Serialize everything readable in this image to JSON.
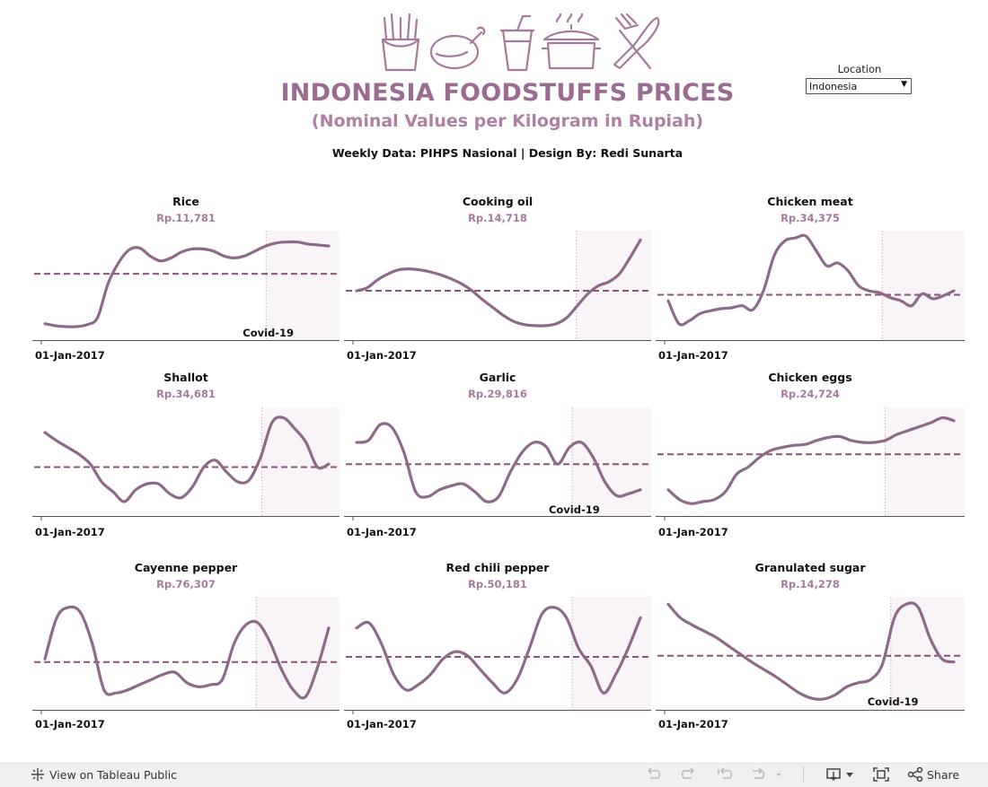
{
  "header": {
    "title": "INDONESIA FOODSTUFFS PRICES",
    "subtitle": "(Nominal Values per Kilogram in Rupiah)",
    "credit": "Weekly Data: PIHPS Nasional | Design By: Redi Sunarta",
    "icons": [
      "fries-icon",
      "roast-chicken-icon",
      "drink-cup-icon",
      "cooking-pot-icon",
      "fork-knife-icon"
    ]
  },
  "location_filter": {
    "label": "Location",
    "value": "Indonesia"
  },
  "colors": {
    "line": "#8e6a89",
    "average": "#8a5577",
    "covid_shade": "#f8f4f8",
    "title": "#9b6b91",
    "value": "#a67a9c"
  },
  "toolbar": {
    "view_label": "View on Tableau Public",
    "share_label": "Share",
    "icons": [
      "undo-icon",
      "redo-icon",
      "revert-icon",
      "refresh-icon",
      "download-icon",
      "fullscreen-icon",
      "share-icon"
    ]
  },
  "chart_data": [
    {
      "type": "line",
      "title": "Rice",
      "value": "Rp.11,781",
      "x_start_label": "01-Jan-2017",
      "covid_label": "Covid-19",
      "y": [
        12,
        10,
        9,
        9,
        11,
        18,
        52,
        73,
        86,
        88,
        80,
        75,
        78,
        84,
        87,
        87,
        85,
        80,
        78,
        80,
        85,
        90,
        93,
        94,
        94,
        92,
        91,
        90
      ],
      "average": 62,
      "covid_start": 0.735
    },
    {
      "type": "line",
      "title": "Cooking oil",
      "value": "Rp.14,718",
      "x_start_label": "01-Jan-2017",
      "covid_label": "",
      "y": [
        45,
        48,
        56,
        62,
        66,
        67,
        66,
        64,
        61,
        57,
        52,
        45,
        36,
        28,
        20,
        14,
        11,
        10,
        10,
        12,
        18,
        30,
        42,
        50,
        54,
        62,
        78,
        96
      ],
      "average": 45,
      "covid_start": 0.73
    },
    {
      "type": "line",
      "title": "Chicken meat",
      "value": "Rp.34,375",
      "x_start_label": "01-Jan-2017",
      "covid_label": "",
      "y": [
        35,
        12,
        15,
        22,
        25,
        27,
        28,
        30,
        26,
        45,
        80,
        95,
        98,
        100,
        85,
        70,
        73,
        65,
        50,
        45,
        43,
        38,
        35,
        30,
        42,
        37,
        40,
        45
      ],
      "average": 41,
      "covid_start": 0.705
    },
    {
      "type": "line",
      "title": "Shallot",
      "value": "Rp.34,681",
      "x_start_label": "01-Jan-2017",
      "covid_label": "",
      "y": [
        80,
        72,
        65,
        58,
        48,
        30,
        20,
        10,
        22,
        28,
        28,
        18,
        14,
        25,
        45,
        52,
        40,
        30,
        32,
        55,
        90,
        95,
        84,
        70,
        45,
        48
      ],
      "average": 45,
      "covid_start": 0.72
    },
    {
      "type": "line",
      "title": "Garlic",
      "value": "Rp.29,816",
      "x_start_label": "01-Jan-2017",
      "covid_label": "Covid-19",
      "y": [
        70,
        72,
        88,
        85,
        60,
        20,
        15,
        22,
        26,
        28,
        20,
        10,
        15,
        40,
        60,
        70,
        66,
        48,
        65,
        70,
        55,
        30,
        16,
        18,
        22
      ],
      "average": 48,
      "covid_start": 0.715
    },
    {
      "type": "line",
      "title": "Chicken eggs",
      "value": "Rp.24,724",
      "x_start_label": "01-Jan-2017",
      "covid_label": "",
      "y": [
        22,
        12,
        8,
        10,
        12,
        20,
        38,
        45,
        55,
        62,
        65,
        67,
        68,
        72,
        75,
        76,
        72,
        70,
        70,
        72,
        78,
        82,
        86,
        90,
        95,
        92
      ],
      "average": 58,
      "covid_start": 0.715
    },
    {
      "type": "line",
      "title": "Cayenne pepper",
      "value": "Rp.76,307",
      "x_start_label": "01-Jan-2017",
      "covid_label": "",
      "y": [
        45,
        85,
        95,
        90,
        60,
        15,
        12,
        15,
        20,
        25,
        30,
        32,
        22,
        18,
        20,
        25,
        60,
        78,
        80,
        62,
        35,
        15,
        8,
        35,
        75
      ],
      "average": 42,
      "covid_start": 0.7
    },
    {
      "type": "line",
      "title": "Red chili pepper",
      "value": "Rp.50,181",
      "x_start_label": "01-Jan-2017",
      "covid_label": "",
      "y": [
        75,
        80,
        60,
        30,
        15,
        20,
        30,
        45,
        52,
        48,
        35,
        22,
        12,
        25,
        55,
        88,
        95,
        85,
        55,
        38,
        12,
        30,
        55,
        85
      ],
      "average": 47,
      "covid_start": 0.715
    },
    {
      "type": "line",
      "title": "Granulated sugar",
      "value": "Rp.14,278",
      "x_start_label": "01-Jan-2017",
      "covid_label": "Covid-19",
      "y": [
        98,
        85,
        78,
        72,
        66,
        58,
        50,
        42,
        35,
        28,
        20,
        12,
        7,
        6,
        10,
        18,
        22,
        25,
        40,
        85,
        98,
        95,
        65,
        45,
        42
      ],
      "average": 48,
      "covid_start": 0.735
    }
  ]
}
